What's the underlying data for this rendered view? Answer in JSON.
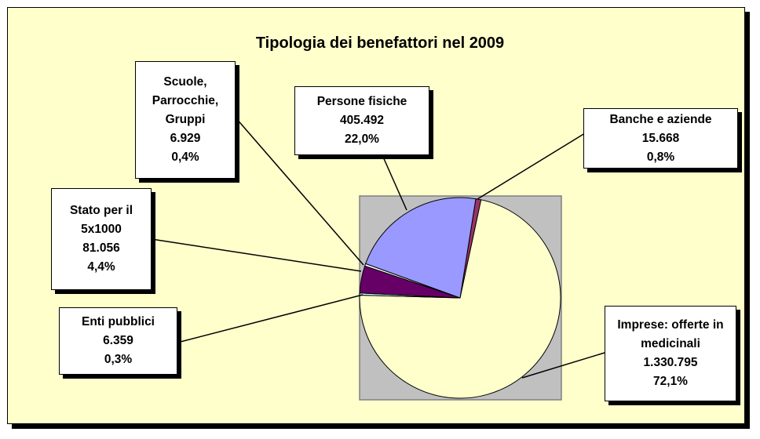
{
  "chart_data": {
    "type": "pie",
    "title": "Tipologia dei benefattori nel 2009",
    "categories": [
      "Banche e aziende",
      "Imprese: offerte in medicinali",
      "Enti pubblici",
      "Stato per il 5x1000",
      "Scuole, Parrocchie, Gruppi",
      "Persone fisiche"
    ],
    "values": [
      15668,
      1330795,
      6359,
      81056,
      6929,
      405492
    ],
    "value_labels": [
      "15.668",
      "1.330.795",
      "6.359",
      "81.056",
      "6.929",
      "405.492"
    ],
    "percents": [
      0.8,
      72.1,
      0.3,
      4.4,
      0.4,
      22.0
    ],
    "percent_labels": [
      "0,8%",
      "72,1%",
      "0,3%",
      "4,4%",
      "0,4%",
      "22,0%"
    ],
    "colors": [
      "#993366",
      "#ffffcc",
      "#ccffff",
      "#660066",
      "#ffffff",
      "#9999ff"
    ]
  }
}
